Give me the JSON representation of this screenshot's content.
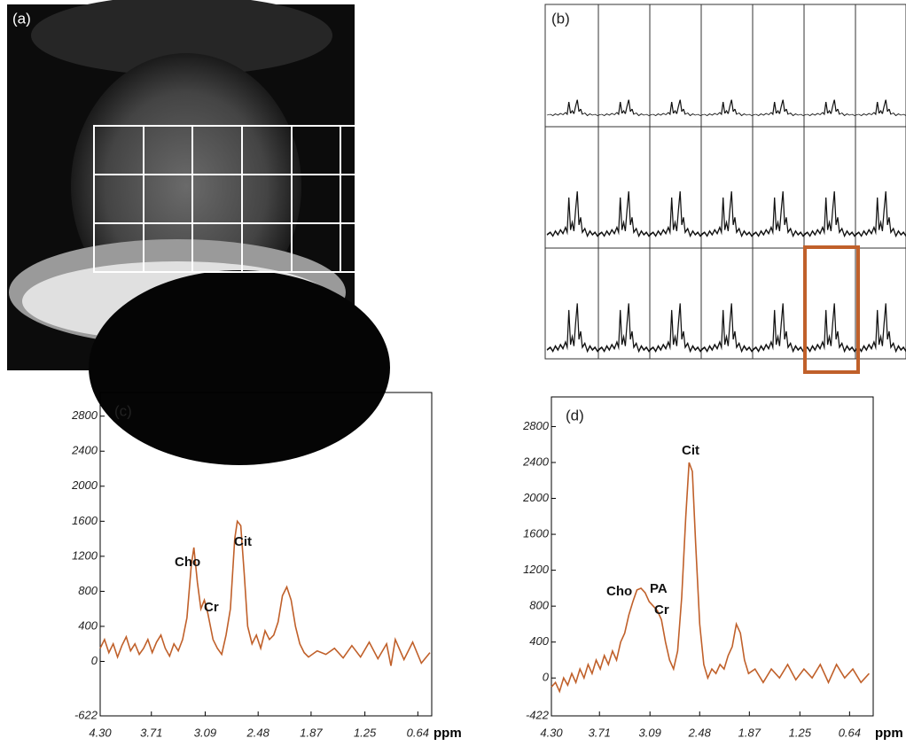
{
  "panels": {
    "a": "(a)",
    "b": "(b)"
  },
  "chart_data": [
    {
      "type": "line",
      "panel_label": "(c)",
      "color": "#c0602a",
      "xlabel": "ppm",
      "xlim": [
        4.3,
        0.48
      ],
      "ylim": [
        -622,
        3070
      ],
      "xticks": [
        {
          "value": 4.3,
          "label": "4.30"
        },
        3.71,
        3.09,
        2.48,
        1.87,
        1.25,
        0.64
      ],
      "yticks": [
        -622,
        0,
        400,
        800,
        1200,
        1600,
        2000,
        2400,
        2800
      ],
      "annotations": [
        "Cho",
        "Cr",
        "Cit"
      ],
      "x": [
        4.3,
        4.25,
        4.2,
        4.15,
        4.1,
        4.05,
        4.0,
        3.95,
        3.9,
        3.85,
        3.8,
        3.75,
        3.7,
        3.65,
        3.6,
        3.55,
        3.5,
        3.45,
        3.4,
        3.35,
        3.3,
        3.25,
        3.22,
        3.18,
        3.14,
        3.1,
        3.06,
        3.0,
        2.95,
        2.9,
        2.85,
        2.8,
        2.75,
        2.72,
        2.68,
        2.64,
        2.6,
        2.55,
        2.5,
        2.45,
        2.4,
        2.35,
        2.3,
        2.25,
        2.2,
        2.15,
        2.1,
        2.05,
        2.0,
        1.95,
        1.9,
        1.8,
        1.7,
        1.6,
        1.5,
        1.4,
        1.3,
        1.2,
        1.1,
        1.0,
        0.95,
        0.9,
        0.8,
        0.7,
        0.6,
        0.5
      ],
      "values": [
        150,
        250,
        100,
        200,
        50,
        180,
        280,
        120,
        200,
        80,
        150,
        250,
        100,
        220,
        300,
        150,
        60,
        200,
        120,
        250,
        500,
        1100,
        1300,
        900,
        600,
        700,
        550,
        250,
        150,
        80,
        300,
        600,
        1400,
        1600,
        1550,
        1000,
        400,
        200,
        300,
        150,
        350,
        250,
        300,
        450,
        750,
        850,
        700,
        400,
        200,
        100,
        50,
        120,
        80,
        150,
        40,
        180,
        50,
        220,
        30,
        200,
        -50,
        250,
        20,
        220,
        -20,
        100
      ]
    },
    {
      "type": "line",
      "panel_label": "(d)",
      "color": "#c0602a",
      "xlabel": "ppm",
      "xlim": [
        4.3,
        0.35
      ],
      "ylim": [
        -422,
        3130
      ],
      "xticks": [
        {
          "value": 4.3,
          "label": "4.30"
        },
        3.71,
        3.09,
        2.48,
        1.87,
        1.25,
        0.64
      ],
      "yticks": [
        -422,
        0,
        400,
        800,
        1200,
        1600,
        2000,
        2400,
        2800
      ],
      "annotations": [
        "Cho",
        "PA",
        "Cr",
        "Cit"
      ],
      "x": [
        4.3,
        4.25,
        4.2,
        4.15,
        4.1,
        4.05,
        4.0,
        3.95,
        3.9,
        3.85,
        3.8,
        3.75,
        3.7,
        3.65,
        3.6,
        3.55,
        3.5,
        3.45,
        3.4,
        3.35,
        3.3,
        3.25,
        3.2,
        3.15,
        3.1,
        3.05,
        3.0,
        2.95,
        2.9,
        2.85,
        2.8,
        2.75,
        2.7,
        2.65,
        2.61,
        2.57,
        2.53,
        2.48,
        2.43,
        2.38,
        2.33,
        2.28,
        2.23,
        2.18,
        2.13,
        2.08,
        2.03,
        1.98,
        1.93,
        1.88,
        1.8,
        1.7,
        1.6,
        1.5,
        1.4,
        1.3,
        1.2,
        1.1,
        1.0,
        0.9,
        0.8,
        0.7,
        0.6,
        0.5,
        0.4
      ],
      "values": [
        -100,
        -50,
        -150,
        0,
        -80,
        50,
        -50,
        100,
        0,
        150,
        50,
        200,
        100,
        250,
        150,
        300,
        200,
        400,
        500,
        700,
        850,
        980,
        1000,
        950,
        850,
        800,
        750,
        650,
        400,
        200,
        100,
        300,
        900,
        1800,
        2400,
        2300,
        1500,
        600,
        150,
        0,
        100,
        50,
        150,
        100,
        250,
        350,
        600,
        500,
        200,
        50,
        100,
        -50,
        100,
        0,
        150,
        -20,
        100,
        0,
        150,
        -50,
        150,
        0,
        100,
        -50,
        50
      ]
    }
  ]
}
